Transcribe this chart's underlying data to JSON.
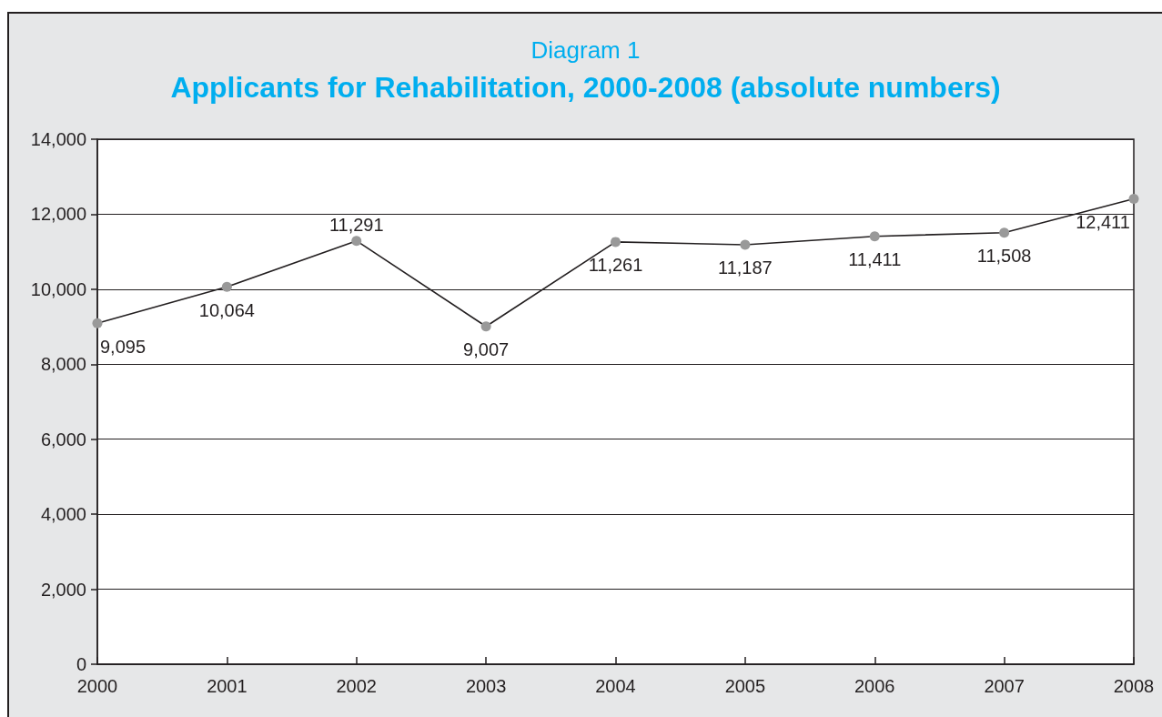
{
  "chart_data": {
    "type": "line",
    "subtitle": "Diagram 1",
    "title": "Applicants for Rehabilitation, 2000-2008 (absolute numbers)",
    "categories": [
      "2000",
      "2001",
      "2002",
      "2003",
      "2004",
      "2005",
      "2006",
      "2007",
      "2008"
    ],
    "values": [
      9095,
      10064,
      11291,
      9007,
      11261,
      11187,
      11411,
      11508,
      12411
    ],
    "value_labels": [
      "9,095",
      "10,064",
      "11,291",
      "9,007",
      "11,261",
      "11,187",
      "11,411",
      "11,508",
      "12,411"
    ],
    "color": "#231f20",
    "ylim": [
      0,
      14000
    ],
    "yticks": [
      0,
      {
        "value": 2000,
        "label": "2,000"
      },
      {
        "value": 4000,
        "label": "4,000"
      },
      {
        "value": 6000,
        "label": "6,000"
      },
      {
        "value": 8000,
        "label": "8,000"
      },
      {
        "value": 10000,
        "label": "10,000"
      },
      {
        "value": 12000,
        "label": "12,000"
      },
      {
        "value": 14000,
        "label": "14,000"
      }
    ],
    "grid": "y",
    "marker": "circle",
    "line_style": "solid"
  }
}
